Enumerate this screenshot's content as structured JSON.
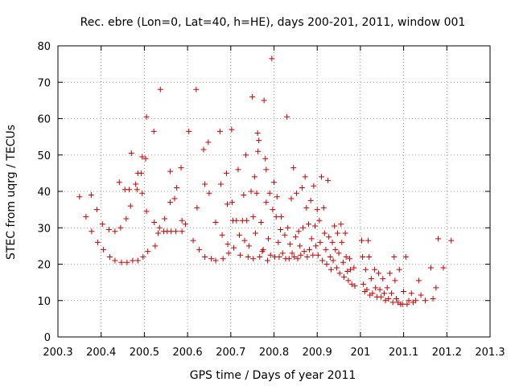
{
  "chart_data": {
    "type": "scatter",
    "title": "Rec. ebre (Lon=0, Lat=40, h=HE), days 200-201, 2011, window 001",
    "xlabel": "GPS time / Days of year 2011",
    "ylabel": "STEC from uqrg / TECUs",
    "xlim": [
      200.3,
      201.3
    ],
    "ylim": [
      0,
      80
    ],
    "x_ticks": [
      200.3,
      200.4,
      200.5,
      200.6,
      200.7,
      200.8,
      200.9,
      201.0,
      201.1,
      201.2,
      201.3
    ],
    "x_tick_labels": [
      "200.3",
      "200.4",
      "200.5",
      "200.6",
      "200.7",
      "200.8",
      "200.9",
      "201",
      "201.1",
      "201.2",
      "201.3"
    ],
    "y_ticks": [
      0,
      10,
      20,
      30,
      40,
      50,
      60,
      70,
      80
    ],
    "y_tick_labels": [
      "0",
      "10",
      "20",
      "30",
      "40",
      "50",
      "60",
      "70",
      "80"
    ],
    "grid": true,
    "marker": "plus",
    "color": "#cc0000",
    "points": [
      [
        200.35,
        38.5
      ],
      [
        200.365,
        33.0
      ],
      [
        200.377,
        39.0
      ],
      [
        200.378,
        29.0
      ],
      [
        200.39,
        35.0
      ],
      [
        200.392,
        26.0
      ],
      [
        200.403,
        31.0
      ],
      [
        200.405,
        24.0
      ],
      [
        200.418,
        29.5
      ],
      [
        200.42,
        22.0
      ],
      [
        200.432,
        29.0
      ],
      [
        200.432,
        21.0
      ],
      [
        200.442,
        42.5
      ],
      [
        200.445,
        30.0
      ],
      [
        200.447,
        20.5
      ],
      [
        200.455,
        40.5
      ],
      [
        200.458,
        32.5
      ],
      [
        200.46,
        20.5
      ],
      [
        200.465,
        40.5
      ],
      [
        200.468,
        36.0
      ],
      [
        200.47,
        50.5
      ],
      [
        200.473,
        21.0
      ],
      [
        200.48,
        42.0
      ],
      [
        200.483,
        40.5
      ],
      [
        200.485,
        45.0
      ],
      [
        200.485,
        21.0
      ],
      [
        200.493,
        45.0
      ],
      [
        200.495,
        39.5
      ],
      [
        200.495,
        49.5
      ],
      [
        200.497,
        22.0
      ],
      [
        200.503,
        49.0
      ],
      [
        200.505,
        60.5
      ],
      [
        200.505,
        34.5
      ],
      [
        200.508,
        23.5
      ],
      [
        200.522,
        56.5
      ],
      [
        200.523,
        31.5
      ],
      [
        200.525,
        25.0
      ],
      [
        200.532,
        28.5
      ],
      [
        200.535,
        30.0
      ],
      [
        200.537,
        68.0
      ],
      [
        200.545,
        29.0
      ],
      [
        200.547,
        32.5
      ],
      [
        200.553,
        29.0
      ],
      [
        200.56,
        45.5
      ],
      [
        200.56,
        37.0
      ],
      [
        200.562,
        29.0
      ],
      [
        200.57,
        38.0
      ],
      [
        200.573,
        29.0
      ],
      [
        200.575,
        41.0
      ],
      [
        200.585,
        46.5
      ],
      [
        200.587,
        32.0
      ],
      [
        200.587,
        29.0
      ],
      [
        200.595,
        31.0
      ],
      [
        200.603,
        56.5
      ],
      [
        200.613,
        26.5
      ],
      [
        200.62,
        68.0
      ],
      [
        200.622,
        35.5
      ],
      [
        200.627,
        24.0
      ],
      [
        200.637,
        51.5
      ],
      [
        200.64,
        42.0
      ],
      [
        200.64,
        22.0
      ],
      [
        200.648,
        53.5
      ],
      [
        200.65,
        39.5
      ],
      [
        200.655,
        21.5
      ],
      [
        200.665,
        31.5
      ],
      [
        200.665,
        21.0
      ],
      [
        200.675,
        56.5
      ],
      [
        200.677,
        42.0
      ],
      [
        200.68,
        28.0
      ],
      [
        200.682,
        21.5
      ],
      [
        200.69,
        45.0
      ],
      [
        200.692,
        36.5
      ],
      [
        200.693,
        25.5
      ],
      [
        200.695,
        23.0
      ],
      [
        200.702,
        57.0
      ],
      [
        200.703,
        37.0
      ],
      [
        200.705,
        32.0
      ],
      [
        200.707,
        24.5
      ],
      [
        200.713,
        32.0
      ],
      [
        200.717,
        46.0
      ],
      [
        200.72,
        28.0
      ],
      [
        200.722,
        22.5
      ],
      [
        200.727,
        32.0
      ],
      [
        200.73,
        39.0
      ],
      [
        200.732,
        26.5
      ],
      [
        200.735,
        50.0
      ],
      [
        200.737,
        32.0
      ],
      [
        200.74,
        22.0
      ],
      [
        200.742,
        25.0
      ],
      [
        200.747,
        40.0
      ],
      [
        200.75,
        66.0
      ],
      [
        200.752,
        33.0
      ],
      [
        200.752,
        21.5
      ],
      [
        200.755,
        44.0
      ],
      [
        200.757,
        28.5
      ],
      [
        200.76,
        39.5
      ],
      [
        200.762,
        56.0
      ],
      [
        200.763,
        51.0
      ],
      [
        200.765,
        54.0
      ],
      [
        200.767,
        22.0
      ],
      [
        200.77,
        31.5
      ],
      [
        200.773,
        23.5
      ],
      [
        200.775,
        24.0
      ],
      [
        200.777,
        65.0
      ],
      [
        200.78,
        49.0
      ],
      [
        200.782,
        37.0
      ],
      [
        200.782,
        46.0
      ],
      [
        200.785,
        21.0
      ],
      [
        200.787,
        27.0
      ],
      [
        200.79,
        39.5
      ],
      [
        200.792,
        22.5
      ],
      [
        200.795,
        76.5
      ],
      [
        200.797,
        35.0
      ],
      [
        200.8,
        42.5
      ],
      [
        200.802,
        22.0
      ],
      [
        200.805,
        33.0
      ],
      [
        200.807,
        38.5
      ],
      [
        200.81,
        26.0
      ],
      [
        200.812,
        22.0
      ],
      [
        200.815,
        29.5
      ],
      [
        200.817,
        33.0
      ],
      [
        200.82,
        23.0
      ],
      [
        200.825,
        28.0
      ],
      [
        200.827,
        21.5
      ],
      [
        200.83,
        60.5
      ],
      [
        200.832,
        30.0
      ],
      [
        200.835,
        21.5
      ],
      [
        200.837,
        25.5
      ],
      [
        200.84,
        38.0
      ],
      [
        200.842,
        23.0
      ],
      [
        200.845,
        46.5
      ],
      [
        200.847,
        22.0
      ],
      [
        200.85,
        27.5
      ],
      [
        200.852,
        39.5
      ],
      [
        200.855,
        21.5
      ],
      [
        200.857,
        29.0
      ],
      [
        200.86,
        25.0
      ],
      [
        200.862,
        22.5
      ],
      [
        200.865,
        41.0
      ],
      [
        200.867,
        30.0
      ],
      [
        200.87,
        23.5
      ],
      [
        200.872,
        44.0
      ],
      [
        200.875,
        35.5
      ],
      [
        200.877,
        22.0
      ],
      [
        200.88,
        31.0
      ],
      [
        200.882,
        24.0
      ],
      [
        200.885,
        37.5
      ],
      [
        200.887,
        27.0
      ],
      [
        200.89,
        22.5
      ],
      [
        200.892,
        41.5
      ],
      [
        200.895,
        30.5
      ],
      [
        200.897,
        25.0
      ],
      [
        200.9,
        35.0
      ],
      [
        200.902,
        22.5
      ],
      [
        200.905,
        32.0
      ],
      [
        200.907,
        26.0
      ],
      [
        200.91,
        44.0
      ],
      [
        200.912,
        21.0
      ],
      [
        200.915,
        35.5
      ],
      [
        200.917,
        28.5
      ],
      [
        200.92,
        24.0
      ],
      [
        200.922,
        20.0
      ],
      [
        200.925,
        43.0
      ],
      [
        200.927,
        27.5
      ],
      [
        200.93,
        22.0
      ],
      [
        200.932,
        18.5
      ],
      [
        200.935,
        26.0
      ],
      [
        200.937,
        21.0
      ],
      [
        200.94,
        30.5
      ],
      [
        200.942,
        24.0
      ],
      [
        200.945,
        19.0
      ],
      [
        200.947,
        28.5
      ],
      [
        200.95,
        23.0
      ],
      [
        200.952,
        17.5
      ],
      [
        200.955,
        31.0
      ],
      [
        200.957,
        26.0
      ],
      [
        200.96,
        20.5
      ],
      [
        200.962,
        16.5
      ],
      [
        200.965,
        28.5
      ],
      [
        200.967,
        22.0
      ],
      [
        200.97,
        18.0
      ],
      [
        200.972,
        15.5
      ],
      [
        200.975,
        21.5
      ],
      [
        200.977,
        18.5
      ],
      [
        200.98,
        14.5
      ],
      [
        200.985,
        19.0
      ],
      [
        200.987,
        14.0
      ],
      [
        201.003,
        26.5
      ],
      [
        201.005,
        22.0
      ],
      [
        201.007,
        14.5
      ],
      [
        201.01,
        12.5
      ],
      [
        201.012,
        18.5
      ],
      [
        201.015,
        13.0
      ],
      [
        201.018,
        26.5
      ],
      [
        201.02,
        22.0
      ],
      [
        201.022,
        11.5
      ],
      [
        201.025,
        16.0
      ],
      [
        201.028,
        12.0
      ],
      [
        201.033,
        18.5
      ],
      [
        201.035,
        13.5
      ],
      [
        201.038,
        11.0
      ],
      [
        201.042,
        17.5
      ],
      [
        201.045,
        13.0
      ],
      [
        201.048,
        11.0
      ],
      [
        201.052,
        16.0
      ],
      [
        201.055,
        12.0
      ],
      [
        201.058,
        10.0
      ],
      [
        201.062,
        13.5
      ],
      [
        201.065,
        10.5
      ],
      [
        201.068,
        17.5
      ],
      [
        201.072,
        12.0
      ],
      [
        201.075,
        9.5
      ],
      [
        201.078,
        22.0
      ],
      [
        201.08,
        15.5
      ],
      [
        201.083,
        10.5
      ],
      [
        201.087,
        9.5
      ],
      [
        201.09,
        18.5
      ],
      [
        201.093,
        9.0
      ],
      [
        201.097,
        9.0
      ],
      [
        201.1,
        12.5
      ],
      [
        201.105,
        22.0
      ],
      [
        201.108,
        9.0
      ],
      [
        201.112,
        10.0
      ],
      [
        201.118,
        12.0
      ],
      [
        201.122,
        9.5
      ],
      [
        201.128,
        10.0
      ],
      [
        201.135,
        15.5
      ],
      [
        201.14,
        11.5
      ],
      [
        201.15,
        10.0
      ],
      [
        201.163,
        19.0
      ],
      [
        201.168,
        10.5
      ],
      [
        201.175,
        13.5
      ],
      [
        201.18,
        27.0
      ],
      [
        201.192,
        19.0
      ],
      [
        201.21,
        26.5
      ]
    ]
  }
}
